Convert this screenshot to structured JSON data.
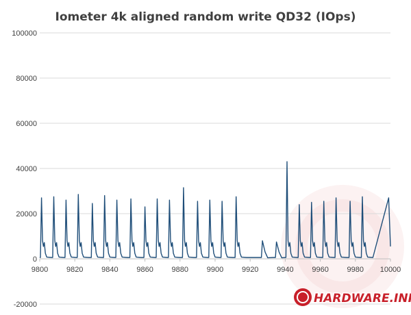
{
  "chart_data": {
    "type": "line",
    "title": "Iometer 4k aligned random write QD32 (IOps)",
    "xlabel": "",
    "ylabel": "",
    "xlim": [
      9800,
      10000
    ],
    "ylim": [
      -20000,
      100000
    ],
    "x_ticks": [
      "9800",
      "9820",
      "9840",
      "9860",
      "9880",
      "9900",
      "9920",
      "9940",
      "9960",
      "9980",
      "10000"
    ],
    "y_ticks": [
      "-20000",
      "0",
      "20000",
      "40000",
      "60000",
      "80000",
      "100000"
    ],
    "grid": "horizontal",
    "legend": "none",
    "series": [
      {
        "color": "#1f4e79",
        "peaks": [
          {
            "x": 9801,
            "y": 27000
          },
          {
            "x": 9808,
            "y": 27500
          },
          {
            "x": 9815,
            "y": 26000
          },
          {
            "x": 9822,
            "y": 28500
          },
          {
            "x": 9830,
            "y": 24500
          },
          {
            "x": 9837,
            "y": 28000
          },
          {
            "x": 9844,
            "y": 26000
          },
          {
            "x": 9852,
            "y": 26500
          },
          {
            "x": 9860,
            "y": 23000
          },
          {
            "x": 9867,
            "y": 26500
          },
          {
            "x": 9874,
            "y": 26000
          },
          {
            "x": 9882,
            "y": 31500
          },
          {
            "x": 9890,
            "y": 25500
          },
          {
            "x": 9897,
            "y": 26000
          },
          {
            "x": 9904,
            "y": 25500
          },
          {
            "x": 9912,
            "y": 27500
          },
          {
            "x": 9927,
            "y": 8000
          },
          {
            "x": 9935,
            "y": 7500
          },
          {
            "x": 9941,
            "y": 43000
          },
          {
            "x": 9948,
            "y": 24000
          },
          {
            "x": 9955,
            "y": 25000
          },
          {
            "x": 9962,
            "y": 25500
          },
          {
            "x": 9969,
            "y": 27000
          },
          {
            "x": 9977,
            "y": 25500
          },
          {
            "x": 9984,
            "y": 27500
          }
        ]
      }
    ]
  },
  "watermark": {
    "text": "HARDWARE.INFO",
    "icon": "hardware-info-logo"
  }
}
